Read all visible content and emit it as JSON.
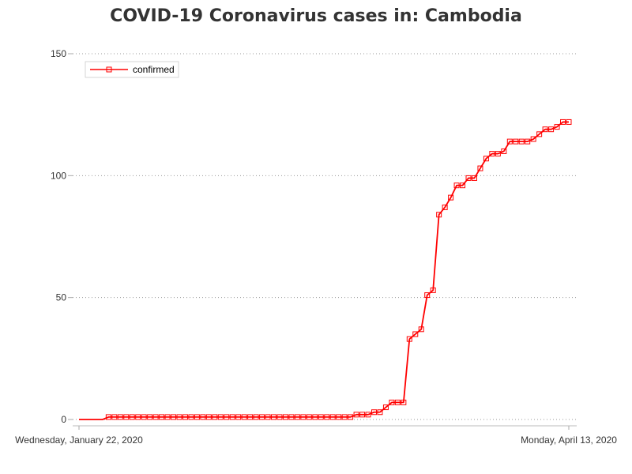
{
  "chart_data": {
    "type": "line",
    "title": "COVID-19 Coronavirus cases in: Cambodia",
    "xlabel": "",
    "ylabel": "",
    "x_tick_labels": [
      "Wednesday, January 22, 2020",
      "Monday, April 13, 2020"
    ],
    "x_start": "2020-01-22",
    "x_end": "2020-04-13",
    "ylim": [
      0,
      150
    ],
    "y_ticks": [
      0,
      50,
      100,
      150
    ],
    "grid": "horizontal dotted",
    "legend_position": "top-left",
    "series": [
      {
        "name": "confirmed",
        "color": "#ff0000",
        "marker": "square",
        "values": [
          0,
          0,
          0,
          0,
          0,
          1,
          1,
          1,
          1,
          1,
          1,
          1,
          1,
          1,
          1,
          1,
          1,
          1,
          1,
          1,
          1,
          1,
          1,
          1,
          1,
          1,
          1,
          1,
          1,
          1,
          1,
          1,
          1,
          1,
          1,
          1,
          1,
          1,
          1,
          1,
          1,
          1,
          1,
          1,
          1,
          1,
          1,
          2,
          2,
          2,
          3,
          3,
          5,
          7,
          7,
          7,
          33,
          35,
          37,
          51,
          53,
          84,
          87,
          91,
          96,
          96,
          99,
          99,
          103,
          107,
          109,
          109,
          110,
          114,
          114,
          114,
          114,
          115,
          117,
          119,
          119,
          120,
          122,
          122
        ]
      }
    ]
  }
}
